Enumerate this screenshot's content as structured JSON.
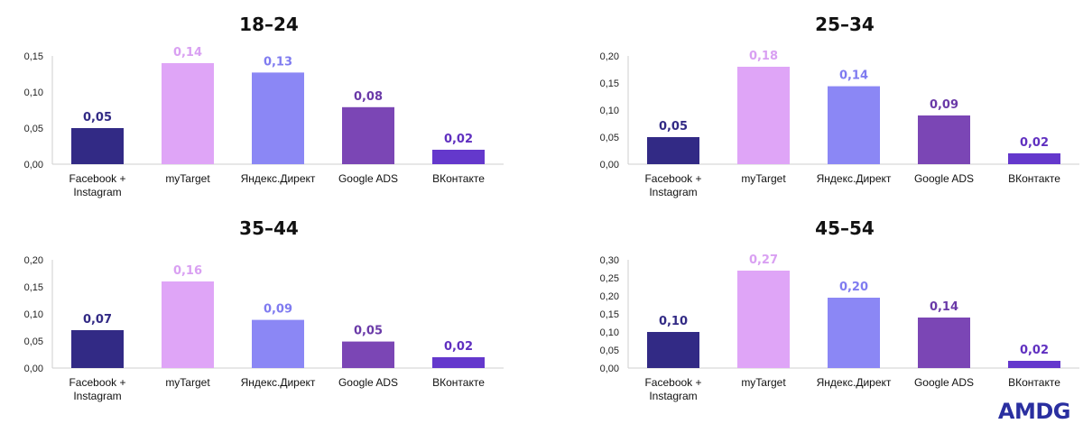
{
  "brand": {
    "logo_text": "AMDG",
    "logo_color": "#2a2fa0"
  },
  "colors": {
    "Facebook + Instagram": "#322a85",
    "myTarget": "#dfa5f7",
    "Яндекс.Директ": "#8b87f5",
    "Google ADS": "#7b46b5",
    "ВКонтакте": "#6438cc"
  },
  "label_colors": {
    "Facebook + Instagram": "#322a85",
    "myTarget": "#d9a0f2",
    "Яндекс.Директ": "#7f7bf0",
    "Google ADS": "#6a3aa8",
    "ВКонтакте": "#6030c0"
  },
  "chart_data": [
    {
      "type": "bar",
      "title": "18–24",
      "categories": [
        "Facebook + Instagram",
        "myTarget",
        "Яндекс.Директ",
        "Google ADS",
        "ВКонтакте"
      ],
      "category_lines": [
        [
          "Facebook +",
          "Instagram"
        ],
        [
          "myTarget"
        ],
        [
          "Яндекс.Директ"
        ],
        [
          "Google ADS"
        ],
        [
          "ВКонтакте"
        ]
      ],
      "values": [
        0.05,
        0.14,
        0.127,
        0.079,
        0.02
      ],
      "data_labels": [
        "0,05",
        "0,14",
        "0,13",
        "0,08",
        "0,02"
      ],
      "ylim": [
        0,
        0.15
      ],
      "yticks": [
        "0,00",
        "0,05",
        "0,10",
        "0,15"
      ],
      "xlabel": "",
      "ylabel": "",
      "grid": false
    },
    {
      "type": "bar",
      "title": "25–34",
      "categories": [
        "Facebook + Instagram",
        "myTarget",
        "Яндекс.Директ",
        "Google ADS",
        "ВКонтакте"
      ],
      "category_lines": [
        [
          "Facebook +",
          "Instagram"
        ],
        [
          "myTarget"
        ],
        [
          "Яндекс.Директ"
        ],
        [
          "Google ADS"
        ],
        [
          "ВКонтакте"
        ]
      ],
      "values": [
        0.05,
        0.18,
        0.144,
        0.09,
        0.02
      ],
      "data_labels": [
        "0,05",
        "0,18",
        "0,14",
        "0,09",
        "0,02"
      ],
      "ylim": [
        0,
        0.2
      ],
      "yticks": [
        "0,00",
        "0,05",
        "0,10",
        "0,15",
        "0,20"
      ],
      "xlabel": "",
      "ylabel": "",
      "grid": false
    },
    {
      "type": "bar",
      "title": "35–44",
      "categories": [
        "Facebook + Instagram",
        "myTarget",
        "Яндекс.Директ",
        "Google ADS",
        "ВКонтакте"
      ],
      "category_lines": [
        [
          "Facebook +",
          "Instagram"
        ],
        [
          "myTarget"
        ],
        [
          "Яндекс.Директ"
        ],
        [
          "Google ADS"
        ],
        [
          "ВКонтакте"
        ]
      ],
      "values": [
        0.07,
        0.16,
        0.089,
        0.049,
        0.02
      ],
      "data_labels": [
        "0,07",
        "0,16",
        "0,09",
        "0,05",
        "0,02"
      ],
      "ylim": [
        0,
        0.2
      ],
      "yticks": [
        "0,00",
        "0,05",
        "0,10",
        "0,15",
        "0,20"
      ],
      "xlabel": "",
      "ylabel": "",
      "grid": false
    },
    {
      "type": "bar",
      "title": "45–54",
      "categories": [
        "Facebook + Instagram",
        "myTarget",
        "Яндекс.Директ",
        "Google ADS",
        "ВКонтакте"
      ],
      "category_lines": [
        [
          "Facebook +",
          "Instagram"
        ],
        [
          "myTarget"
        ],
        [
          "Яндекс.Директ"
        ],
        [
          "Google ADS"
        ],
        [
          "ВКонтакте"
        ]
      ],
      "values": [
        0.1,
        0.27,
        0.195,
        0.14,
        0.02
      ],
      "data_labels": [
        "0,10",
        "0,27",
        "0,20",
        "0,14",
        "0,02"
      ],
      "ylim": [
        0,
        0.3
      ],
      "yticks": [
        "0,00",
        "0,05",
        "0,10",
        "0,15",
        "0,20",
        "0,25",
        "0,30"
      ],
      "xlabel": "",
      "ylabel": "",
      "grid": false
    }
  ]
}
